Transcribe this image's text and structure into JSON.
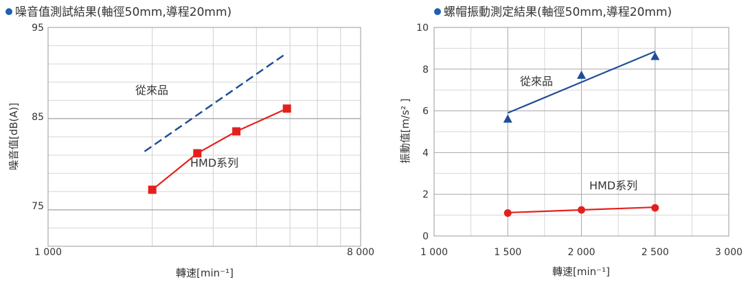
{
  "chart_data": [
    {
      "type": "line",
      "title": "噪音值測試結果(軸徑50mm,導程20mm)",
      "xlabel": "轉速[min⁻¹]",
      "ylabel": "噪音值[dB(A)]",
      "x_scale": "log",
      "xlim": [
        1000,
        8000
      ],
      "ylim": [
        71,
        95
      ],
      "x_tick_labels": [
        "1 000",
        "8 000"
      ],
      "y_ticks": [
        75,
        85,
        95
      ],
      "grid": true,
      "series": [
        {
          "name": "從來品",
          "color": "#1f4e96",
          "style": "dashed",
          "x": [
            1900,
            4900
          ],
          "y": [
            81.4,
            92.2
          ]
        },
        {
          "name": "HMD系列",
          "color": "#e3211c",
          "style": "solid",
          "marker": "square",
          "x": [
            2000,
            2700,
            3500,
            4900
          ],
          "y": [
            77.2,
            81.2,
            83.6,
            86.1
          ]
        }
      ]
    },
    {
      "type": "line",
      "title": "螺帽振動測定結果(軸徑50mm,導程20mm)",
      "xlabel": "轉速[min⁻¹]",
      "ylabel": "振動值[m/s² ]",
      "xlim": [
        1000,
        3000
      ],
      "ylim": [
        0,
        10
      ],
      "x_tick_labels": [
        "1 000",
        "1 500",
        "2 000",
        "2 500",
        "3 000"
      ],
      "y_ticks": [
        0,
        2,
        4,
        6,
        8,
        10
      ],
      "grid": true,
      "series": [
        {
          "name": "從來品",
          "color": "#1f4e96",
          "style": "solid",
          "marker": "triangle",
          "points": [
            {
              "x": 1500,
              "y": 5.6
            },
            {
              "x": 2000,
              "y": 7.7
            },
            {
              "x": 2500,
              "y": 8.6
            }
          ],
          "fit": {
            "x": [
              1500,
              2500
            ],
            "y": [
              5.9,
              8.85
            ]
          }
        },
        {
          "name": "HMD系列",
          "color": "#e3211c",
          "style": "solid",
          "marker": "circle",
          "points": [
            {
              "x": 1500,
              "y": 1.1
            },
            {
              "x": 2000,
              "y": 1.25
            },
            {
              "x": 2500,
              "y": 1.35
            }
          ],
          "fit": {
            "x": [
              1500,
              2500
            ],
            "y": [
              1.12,
              1.38
            ]
          }
        }
      ]
    }
  ]
}
